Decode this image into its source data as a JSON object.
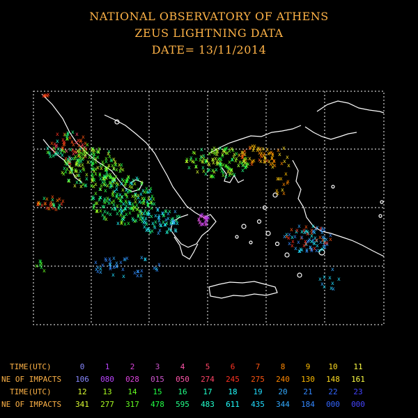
{
  "header": {
    "line1": "NATIONAL OBSERVATORY OF ATHENS",
    "line2": "ZEUS LIGHTNING DATA",
    "line3": "DATE= 13/11/2014"
  },
  "table": {
    "time_label": "TIME(UTC)",
    "impacts_label": "NE OF IMPACTS",
    "row1_hours": [
      "0",
      "1",
      "2",
      "3",
      "4",
      "5",
      "6",
      "7",
      "8",
      "9",
      "10",
      "11"
    ],
    "row1_impacts": [
      "106",
      "080",
      "028",
      "015",
      "050",
      "274",
      "245",
      "275",
      "240",
      "130",
      "148",
      "161"
    ],
    "row2_hours": [
      "12",
      "13",
      "14",
      "15",
      "16",
      "17",
      "18",
      "19",
      "20",
      "21",
      "22",
      "23"
    ],
    "row2_impacts": [
      "341",
      "277",
      "317",
      "478",
      "595",
      "483",
      "611",
      "435",
      "344",
      "184",
      "000",
      "000"
    ],
    "hour_colors": [
      "#8888ff",
      "#bb44ff",
      "#dd44dd",
      "#cc55cc",
      "#ff55aa",
      "#ff4466",
      "#ff3322",
      "#ff5511",
      "#ff8800",
      "#ffbb00",
      "#ffdd22",
      "#ffff44",
      "#ddff33",
      "#aaff22",
      "#66ff22",
      "#22ff44",
      "#22ff88",
      "#22ffcc",
      "#22ffff",
      "#22ddff",
      "#33aaff",
      "#3388ff",
      "#3366ff",
      "#4444ff"
    ]
  },
  "map": {
    "grid_color": "#ffffff",
    "coast_color": "#ffffff"
  }
}
